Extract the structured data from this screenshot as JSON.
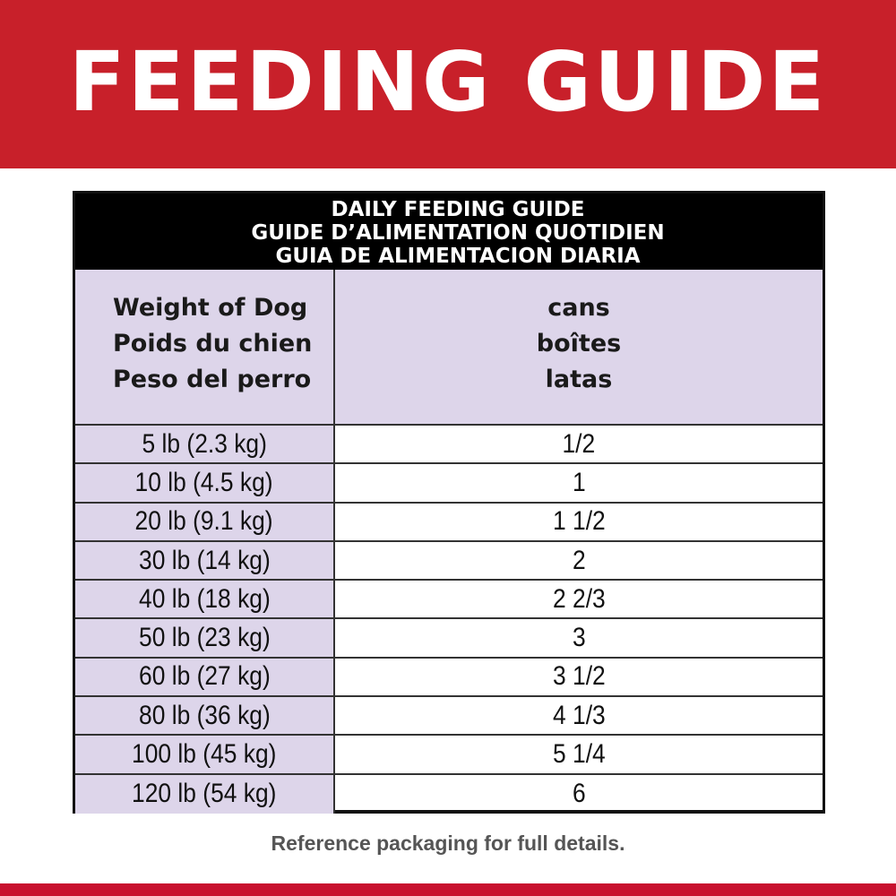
{
  "banner": {
    "title": "FEEDING GUIDE",
    "color": "#c8202a"
  },
  "table": {
    "title_lines": [
      "DAILY FEEDING GUIDE",
      "GUIDE D’ALIMENTATION QUOTIDIEN",
      "GUIA DE ALIMENTACION DIARIA"
    ],
    "col1_header": [
      "Weight of Dog",
      "Poids du chien",
      "Peso del perro"
    ],
    "col2_header": [
      "cans",
      "boîtes",
      "latas"
    ],
    "rows": [
      {
        "weight": "5 lb (2.3 kg)",
        "cans": "1/2"
      },
      {
        "weight": "10 lb (4.5 kg)",
        "cans": "1"
      },
      {
        "weight": "20 lb (9.1 kg)",
        "cans": "1 1/2"
      },
      {
        "weight": "30 lb (14 kg)",
        "cans": "2"
      },
      {
        "weight": "40 lb (18 kg)",
        "cans": "2 2/3"
      },
      {
        "weight": "50 lb (23 kg)",
        "cans": "3"
      },
      {
        "weight": "60 lb (27 kg)",
        "cans": "3 1/2"
      },
      {
        "weight": "80 lb (36 kg)",
        "cans": "4 1/3"
      },
      {
        "weight": "100 lb (45 kg)",
        "cans": "5 1/4"
      },
      {
        "weight": "120 lb (54 kg)",
        "cans": "6"
      }
    ],
    "header_fill": "#ddd5ea"
  },
  "footer": {
    "note": "Reference packaging for full details."
  }
}
